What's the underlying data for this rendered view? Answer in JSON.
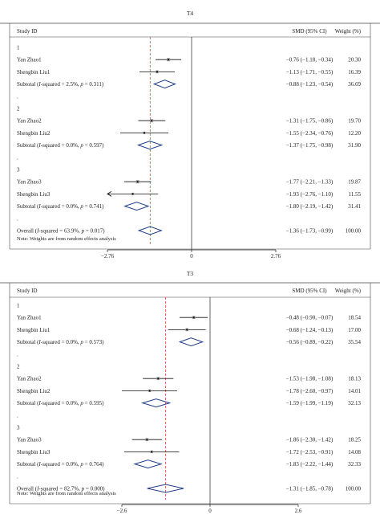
{
  "chart_data": [
    {
      "type": "forest",
      "title": "T4",
      "columns": {
        "study": "Study ID",
        "effect": "SMD (95% CI)",
        "weight": "Weight (%)"
      },
      "xlim": [
        -2.76,
        2.76
      ],
      "x_ticks": [
        -2.76,
        0,
        2.76
      ],
      "x_tick_labels": [
        "−2.76",
        "0",
        "2.76"
      ],
      "overall_line": -1.36,
      "note": "Note: Weights are from random effects analysis",
      "rows": [
        {
          "kind": "group",
          "label": "1"
        },
        {
          "kind": "study",
          "label": "Yan Zhao1",
          "est": -0.76,
          "lo": -1.18,
          "hi": -0.34,
          "ci_text": "−0.76 (−1.18, −0.34)",
          "weight": "20.30",
          "w": 20.3
        },
        {
          "kind": "study",
          "label": "Shengbin Liu1",
          "est": -1.13,
          "lo": -1.71,
          "hi": -0.55,
          "ci_text": "−1.13 (−1.71, −0.55)",
          "weight": "16.39",
          "w": 16.39
        },
        {
          "kind": "subtotal",
          "label": "Subtotal (",
          "i2": "I",
          "i2_rest": "-squared = 2.5%, ",
          "p": "p",
          "p_rest": " = 0.311)",
          "est": -0.88,
          "lo": -1.23,
          "hi": -0.54,
          "ci_text": "−0.88 (−1.23, −0.54)",
          "weight": "36.69"
        },
        {
          "kind": "dot",
          "label": "."
        },
        {
          "kind": "group",
          "label": "2"
        },
        {
          "kind": "study",
          "label": "Yan Zhao2",
          "est": -1.31,
          "lo": -1.75,
          "hi": -0.86,
          "ci_text": "−1.31 (−1.75, −0.86)",
          "weight": "19.70",
          "w": 19.7
        },
        {
          "kind": "study",
          "label": "Shengbin Liu2",
          "est": -1.55,
          "lo": -2.34,
          "hi": -0.76,
          "ci_text": "−1.55 (−2.34, −0.76)",
          "weight": "12.20",
          "w": 12.2
        },
        {
          "kind": "subtotal",
          "label": "Subtotal (",
          "i2": "I",
          "i2_rest": "-squared = 0.0%, ",
          "p": "p",
          "p_rest": " = 0.597)",
          "est": -1.37,
          "lo": -1.75,
          "hi": -0.98,
          "ci_text": "−1.37 (−1.75, −0.98)",
          "weight": "31.90"
        },
        {
          "kind": "dot",
          "label": "."
        },
        {
          "kind": "group",
          "label": "3"
        },
        {
          "kind": "study",
          "label": "Yan Zhao3",
          "est": -1.77,
          "lo": -2.21,
          "hi": -1.33,
          "ci_text": "−1.77 (−2.21, −1.33)",
          "weight": "19.87",
          "w": 19.87
        },
        {
          "kind": "study",
          "label": "Shengbin Liu3",
          "est": -1.93,
          "lo": -2.76,
          "hi": -1.1,
          "ci_text": "−1.93 (−2.76, −1.10)",
          "weight": "11.55",
          "w": 11.55,
          "arrow_left": true
        },
        {
          "kind": "subtotal",
          "label": "Subtotal (",
          "i2": "I",
          "i2_rest": "-squared = 0.0%, ",
          "p": "p",
          "p_rest": " = 0.741)",
          "est": -1.8,
          "lo": -2.19,
          "hi": -1.42,
          "ci_text": "−1.80 (−2.19, −1.42)",
          "weight": "31.41"
        },
        {
          "kind": "dot",
          "label": "."
        },
        {
          "kind": "overall",
          "label": "Overall (",
          "i2": "I",
          "i2_rest": "-squared = 63.9%, ",
          "p": "p",
          "p_rest": " = 0.017)",
          "est": -1.36,
          "lo": -1.73,
          "hi": -0.99,
          "ci_text": "−1.36 (−1.73, −0.99)",
          "weight": "100.00"
        }
      ]
    },
    {
      "type": "forest",
      "title": "T3",
      "columns": {
        "study": "Study ID",
        "effect": "SMD (95% CI)",
        "weight": "Weight (%)"
      },
      "xlim": [
        -2.6,
        2.6
      ],
      "x_ticks": [
        -2.6,
        0,
        2.6
      ],
      "x_tick_labels": [
        "−2.6",
        "0",
        "2.6"
      ],
      "overall_line": -1.31,
      "note": "Note: Weights are from random effects analysis",
      "rows": [
        {
          "kind": "group",
          "label": "1"
        },
        {
          "kind": "study",
          "label": "Yan Zhao1",
          "est": -0.48,
          "lo": -0.9,
          "hi": -0.07,
          "ci_text": "−0.48 (−0.90, −0.07)",
          "weight": "18.54",
          "w": 18.54
        },
        {
          "kind": "study",
          "label": "Shengbin Liu1",
          "est": -0.68,
          "lo": -1.24,
          "hi": -0.13,
          "ci_text": "−0.68 (−1.24, −0.13)",
          "weight": "17.00",
          "w": 17.0
        },
        {
          "kind": "subtotal",
          "label": "Subtotal (",
          "i2": "I",
          "i2_rest": "-squared = 0.0%, ",
          "p": "p",
          "p_rest": " = 0.573)",
          "est": -0.56,
          "lo": -0.89,
          "hi": -0.22,
          "ci_text": "−0.56 (−0.89, −0.22)",
          "weight": "35.54"
        },
        {
          "kind": "dot",
          "label": "."
        },
        {
          "kind": "group",
          "label": "2"
        },
        {
          "kind": "study",
          "label": "Yan Zhao2",
          "est": -1.53,
          "lo": -1.98,
          "hi": -1.08,
          "ci_text": "−1.53 (−1.98, −1.08)",
          "weight": "18.13",
          "w": 18.13
        },
        {
          "kind": "study",
          "label": "Shengbin Liu2",
          "est": -1.78,
          "lo": -2.6,
          "hi": -0.97,
          "ci_text": "−1.78 (−2.60, −0.97)",
          "weight": "14.01",
          "w": 14.01
        },
        {
          "kind": "subtotal",
          "label": "Subtotal (",
          "i2": "I",
          "i2_rest": "-squared = 0.0%, ",
          "p": "p",
          "p_rest": " = 0.595)",
          "est": -1.59,
          "lo": -1.99,
          "hi": -1.19,
          "ci_text": "−1.59 (−1.99, −1.19)",
          "weight": "32.13"
        },
        {
          "kind": "dot",
          "label": "."
        },
        {
          "kind": "group",
          "label": "3"
        },
        {
          "kind": "study",
          "label": "Yan Zhao3",
          "est": -1.86,
          "lo": -2.3,
          "hi": -1.42,
          "ci_text": "−1.86 (−2.30, −1.42)",
          "weight": "18.25",
          "w": 18.25
        },
        {
          "kind": "study",
          "label": "Shengbin Liu3",
          "est": -1.72,
          "lo": -2.53,
          "hi": -0.91,
          "ci_text": "−1.72 (−2.53, −0.91)",
          "weight": "14.08",
          "w": 14.08
        },
        {
          "kind": "subtotal",
          "label": "Subtotal (",
          "i2": "I",
          "i2_rest": "-squared = 0.0%, ",
          "p": "p",
          "p_rest": " = 0.764)",
          "est": -1.83,
          "lo": -2.22,
          "hi": -1.44,
          "ci_text": "−1.83 (−2.22, −1.44)",
          "weight": "32.33"
        },
        {
          "kind": "dot",
          "label": "."
        },
        {
          "kind": "overall",
          "label": "Overall (",
          "i2": "I",
          "i2_rest": "-squared = 82.7%, ",
          "p": "p",
          "p_rest": " = 0.000)",
          "est": -1.31,
          "lo": -1.85,
          "hi": -0.78,
          "ci_text": "−1.31 (−1.85, −0.78)",
          "weight": "100.00"
        }
      ]
    }
  ]
}
